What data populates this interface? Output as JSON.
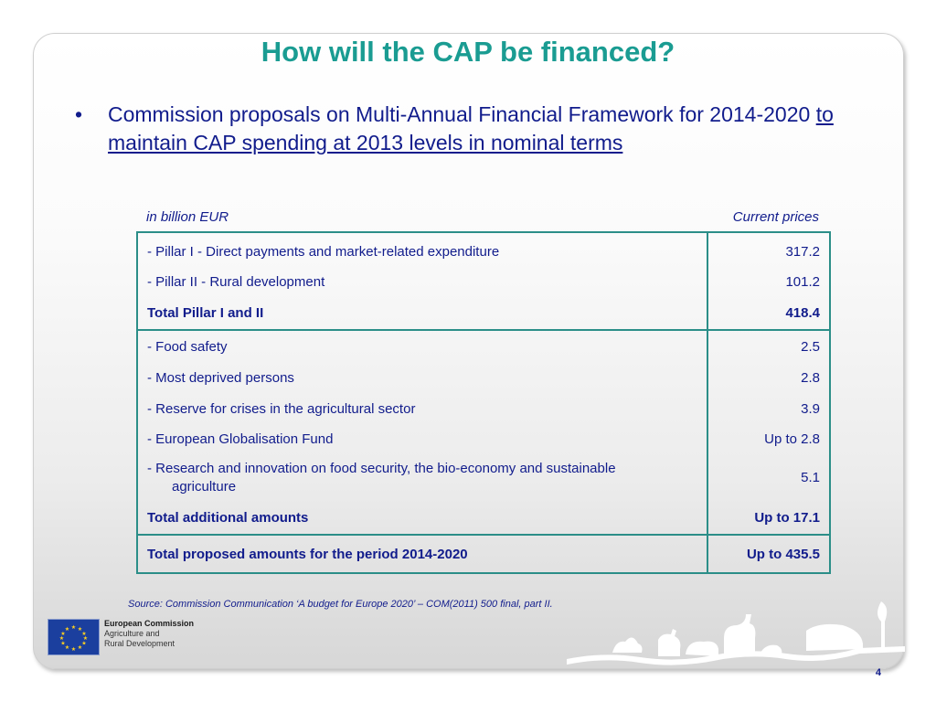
{
  "slide": {
    "title": "How will the CAP be financed?",
    "bullet_symbol": "•",
    "bullet_text": "Commission proposals on Multi-Annual Financial Framework for 2014-2020",
    "bullet_underlined": "to maintain CAP spending at 2013 levels in nominal terms",
    "page_number": "4"
  },
  "table": {
    "units_label": "in billion EUR",
    "prices_label": "Current prices",
    "sections": [
      {
        "rows": [
          {
            "label": "- Pillar I - Direct payments and market-related expenditure",
            "amount": "317.2",
            "bold": false
          },
          {
            "label": "- Pillar II - Rural development",
            "amount": "101.2",
            "bold": false
          },
          {
            "label": "Total Pillar I and II",
            "amount": "418.4",
            "bold": true
          }
        ]
      },
      {
        "rows": [
          {
            "label": "- Food safety",
            "amount": "2.5",
            "bold": false
          },
          {
            "label": "- Most deprived persons",
            "amount": "2.8",
            "bold": false
          },
          {
            "label": "- Reserve for crises in the agricultural sector",
            "amount": "3.9",
            "bold": false
          },
          {
            "label": "- European Globalisation Fund",
            "amount": "Up to 2.8",
            "bold": false
          },
          {
            "label": "- Research and innovation on food security, the bio-economy and sustainable",
            "label_cont": "agriculture",
            "amount": "5.1",
            "bold": false
          },
          {
            "label": "Total additional amounts",
            "amount": "Up to 17.1",
            "bold": true
          }
        ]
      },
      {
        "rows": [
          {
            "label": "Total proposed amounts for the period 2014-2020",
            "amount": "Up to 435.5",
            "bold": true
          }
        ]
      }
    ]
  },
  "source_note": "Source: Commission Communication ‘A budget for Europe 2020’ – COM(2011) 500 final, part II.",
  "footer_logo": {
    "line1": "European Commission",
    "line2": "Agriculture and",
    "line3": "Rural Development",
    "icon": "eu-flag-icon"
  },
  "colors": {
    "title": "#1a9c92",
    "text": "#111c8c",
    "table_border": "#2b8e88"
  }
}
